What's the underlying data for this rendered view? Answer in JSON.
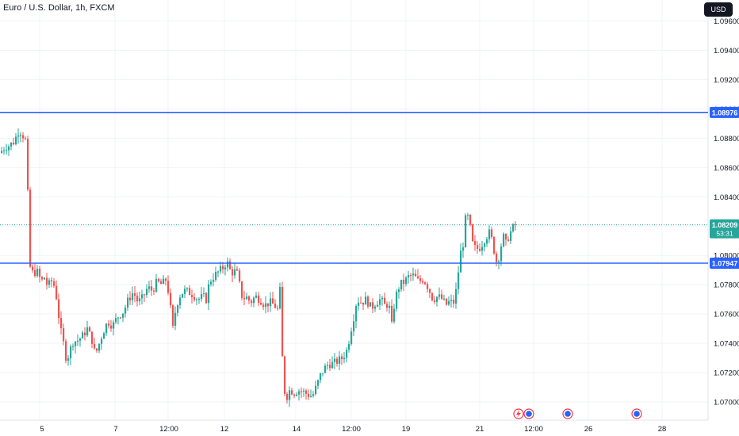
{
  "header": {
    "title": "Euro / U.S. Dollar, 1h, FXCM",
    "currency_button": "USD"
  },
  "colors": {
    "up": "#26a69a",
    "down": "#ef5350",
    "level_line": "#2962ff",
    "last_price": "#26a69a",
    "grid": "#f0f3fa",
    "axis_text": "#131722"
  },
  "chart_data": {
    "type": "candlestick",
    "title": "Euro / U.S. Dollar, 1h, FXCM",
    "ylim": [
      1.0688,
      1.0984
    ],
    "y_ticks": [
      "1.07000",
      "1.07200",
      "1.07400",
      "1.07600",
      "1.07800",
      "1.08000",
      "1.08200",
      "1.08400",
      "1.08600",
      "1.08800",
      "1.09000",
      "1.09200",
      "1.09400",
      "1.09600"
    ],
    "x_ticks": [
      "5",
      "7",
      "12:00",
      "12",
      "14",
      "12:00",
      "19",
      "21",
      "12:00",
      "26",
      "28"
    ],
    "horizontal_levels": [
      {
        "value": "1.08976",
        "price": 1.08976
      },
      {
        "value": "1.07947",
        "price": 1.07947
      }
    ],
    "last_price": {
      "value": "1.08209",
      "price": 1.08209,
      "countdown": "53:31"
    },
    "path": [
      [
        0,
        1.087
      ],
      [
        6,
        1.0874
      ],
      [
        12,
        1.0875
      ],
      [
        18,
        1.0878
      ],
      [
        24,
        1.0886
      ],
      [
        30,
        1.0881
      ],
      [
        34,
        1.0876
      ],
      [
        36,
        1.0808
      ],
      [
        38,
        1.0792
      ],
      [
        42,
        1.0787
      ],
      [
        46,
        1.079
      ],
      [
        52,
        1.0782
      ],
      [
        56,
        1.0785
      ],
      [
        60,
        1.0779
      ],
      [
        66,
        1.0783
      ],
      [
        70,
        1.0776
      ],
      [
        76,
        1.075
      ],
      [
        80,
        1.074
      ],
      [
        84,
        1.0728
      ],
      [
        88,
        1.0735
      ],
      [
        92,
        1.0741
      ],
      [
        98,
        1.0742
      ],
      [
        104,
        1.0745
      ],
      [
        110,
        1.075
      ],
      [
        116,
        1.0742
      ],
      [
        120,
        1.0732
      ],
      [
        124,
        1.0738
      ],
      [
        130,
        1.0748
      ],
      [
        136,
        1.0755
      ],
      [
        142,
        1.0752
      ],
      [
        148,
        1.0758
      ],
      [
        156,
        1.0762
      ],
      [
        162,
        1.077
      ],
      [
        168,
        1.0775
      ],
      [
        174,
        1.0768
      ],
      [
        180,
        1.0771
      ],
      [
        186,
        1.0778
      ],
      [
        192,
        1.0776
      ],
      [
        198,
        1.0782
      ],
      [
        204,
        1.078
      ],
      [
        210,
        1.0784
      ],
      [
        214,
        1.0768
      ],
      [
        218,
        1.075
      ],
      [
        222,
        1.0765
      ],
      [
        226,
        1.0772
      ],
      [
        232,
        1.0776
      ],
      [
        238,
        1.0775
      ],
      [
        244,
        1.0773
      ],
      [
        250,
        1.077
      ],
      [
        256,
        1.0772
      ],
      [
        260,
        1.077
      ],
      [
        264,
        1.0782
      ],
      [
        270,
        1.0786
      ],
      [
        276,
        1.0789
      ],
      [
        282,
        1.0792
      ],
      [
        286,
        1.0796
      ],
      [
        290,
        1.079
      ],
      [
        294,
        1.0788
      ],
      [
        298,
        1.079
      ],
      [
        302,
        1.078
      ],
      [
        306,
        1.077
      ],
      [
        310,
        1.0772
      ],
      [
        316,
        1.0768
      ],
      [
        322,
        1.0772
      ],
      [
        328,
        1.077
      ],
      [
        334,
        1.0766
      ],
      [
        340,
        1.0768
      ],
      [
        346,
        1.0766
      ],
      [
        350,
        1.0763
      ],
      [
        354,
        1.078
      ],
      [
        356,
        1.073
      ],
      [
        358,
        1.0708
      ],
      [
        362,
        1.0704
      ],
      [
        366,
        1.0709
      ],
      [
        370,
        1.0706
      ],
      [
        376,
        1.0708
      ],
      [
        382,
        1.0707
      ],
      [
        388,
        1.0705
      ],
      [
        394,
        1.0704
      ],
      [
        400,
        1.0712
      ],
      [
        404,
        1.0718
      ],
      [
        408,
        1.0722
      ],
      [
        414,
        1.0726
      ],
      [
        420,
        1.0726
      ],
      [
        426,
        1.0728
      ],
      [
        432,
        1.073
      ],
      [
        438,
        1.0736
      ],
      [
        442,
        1.0748
      ],
      [
        446,
        1.0758
      ],
      [
        450,
        1.077
      ],
      [
        456,
        1.0768
      ],
      [
        462,
        1.077
      ],
      [
        468,
        1.0764
      ],
      [
        474,
        1.0768
      ],
      [
        480,
        1.077
      ],
      [
        486,
        1.0765
      ],
      [
        490,
        1.0768
      ],
      [
        494,
        1.0752
      ],
      [
        498,
        1.077
      ],
      [
        504,
        1.078
      ],
      [
        510,
        1.0782
      ],
      [
        516,
        1.0786
      ],
      [
        522,
        1.0786
      ],
      [
        528,
        1.0782
      ],
      [
        534,
        1.0784
      ],
      [
        540,
        1.0778
      ],
      [
        546,
        1.077
      ],
      [
        552,
        1.0772
      ],
      [
        558,
        1.077
      ],
      [
        562,
        1.0766
      ],
      [
        566,
        1.0768
      ],
      [
        572,
        1.0768
      ],
      [
        576,
        1.0778
      ],
      [
        580,
        1.08
      ],
      [
        584,
        1.0808
      ],
      [
        588,
        1.083
      ],
      [
        592,
        1.0822
      ],
      [
        596,
        1.0808
      ],
      [
        600,
        1.0804
      ],
      [
        606,
        1.0806
      ],
      [
        612,
        1.0812
      ],
      [
        618,
        1.0816
      ],
      [
        622,
        1.0806
      ],
      [
        626,
        1.0796
      ],
      [
        630,
        1.08
      ],
      [
        634,
        1.0814
      ],
      [
        638,
        1.0808
      ],
      [
        642,
        1.0814
      ],
      [
        646,
        1.0818
      ],
      [
        650,
        1.0821
      ]
    ]
  },
  "events": {
    "flash_icon": "lightning-icon",
    "calendar_icon": "economic-event-icon"
  }
}
